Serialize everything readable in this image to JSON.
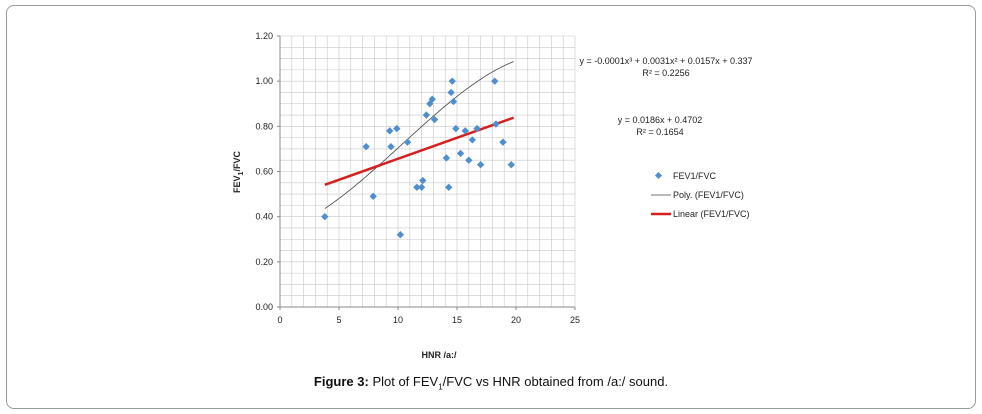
{
  "chart_data": {
    "type": "scatter",
    "xlabel_main": "HNR /a:/",
    "ylabel_main": "FEV",
    "ylabel_sub": "1",
    "ylabel_tail": "/FVC",
    "xlim": [
      0,
      25
    ],
    "ylim": [
      0,
      1.2
    ],
    "x_ticks": [
      "0",
      "5",
      "10",
      "15",
      "20",
      "25"
    ],
    "y_ticks": [
      "0.00",
      "0.20",
      "0.40",
      "0.60",
      "0.80",
      "1.00",
      "1.20"
    ],
    "grid": true,
    "series": [
      {
        "name": "FEV1/FVC",
        "marker": "diamond",
        "color": "#4f8fcf",
        "points": [
          [
            3.8,
            0.4
          ],
          [
            7.3,
            0.71
          ],
          [
            7.9,
            0.49
          ],
          [
            9.3,
            0.78
          ],
          [
            9.4,
            0.71
          ],
          [
            9.9,
            0.79
          ],
          [
            10.2,
            0.32
          ],
          [
            10.8,
            0.73
          ],
          [
            11.6,
            0.53
          ],
          [
            12.0,
            0.53
          ],
          [
            12.1,
            0.56
          ],
          [
            12.4,
            0.85
          ],
          [
            12.7,
            0.9
          ],
          [
            12.9,
            0.92
          ],
          [
            13.1,
            0.83
          ],
          [
            14.1,
            0.66
          ],
          [
            14.3,
            0.53
          ],
          [
            14.5,
            0.95
          ],
          [
            14.6,
            1.0
          ],
          [
            14.7,
            0.91
          ],
          [
            14.9,
            0.79
          ],
          [
            15.3,
            0.68
          ],
          [
            15.7,
            0.78
          ],
          [
            16.0,
            0.65
          ],
          [
            16.3,
            0.74
          ],
          [
            16.7,
            0.79
          ],
          [
            17.0,
            0.63
          ],
          [
            18.2,
            1.0
          ],
          [
            18.3,
            0.81
          ],
          [
            18.9,
            0.73
          ],
          [
            19.6,
            0.63
          ]
        ]
      },
      {
        "name": "Poly. (FEV1/FVC)",
        "type": "poly-trend",
        "color": "#444444",
        "coefficients": [
          0.337,
          0.0157,
          0.0031,
          -0.0001
        ],
        "x_range": [
          3.8,
          19.8
        ]
      },
      {
        "name": "Linear (FEV1/FVC)",
        "type": "linear-trend",
        "color": "#d62020",
        "slope": 0.0186,
        "intercept": 0.4702,
        "x_range": [
          3.8,
          19.8
        ]
      }
    ],
    "annotations": {
      "poly_equation": "y = -0.0001x³ + 0.0031x² + 0.0157x + 0.337",
      "poly_r2": "R² = 0.2256",
      "linear_equation": "y = 0.0186x + 0.4702",
      "linear_r2": "R² = 0.1654"
    },
    "legend_position": "right"
  },
  "caption": {
    "label": "Figure 3:",
    "text_before": "Plot of FEV",
    "sub": "1",
    "text_after": "/FVC vs HNR obtained from /a:/ sound."
  }
}
